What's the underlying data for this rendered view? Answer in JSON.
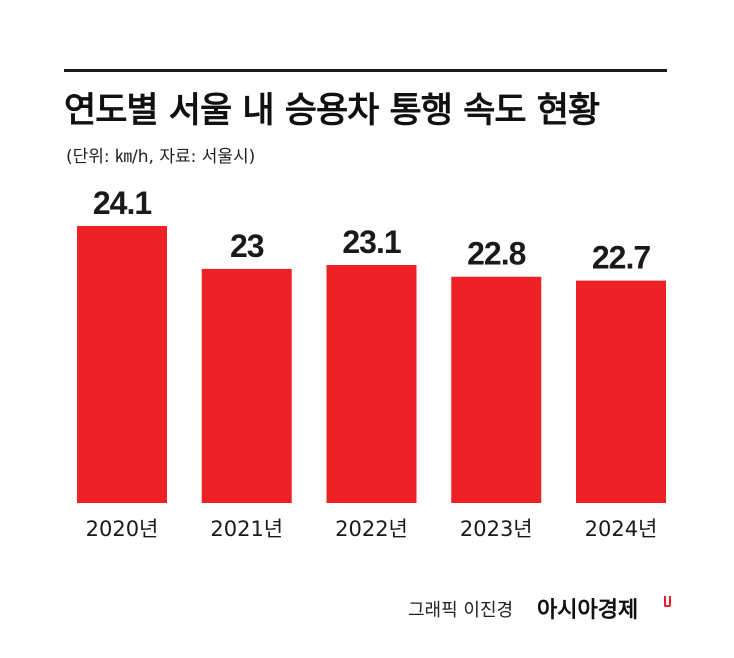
{
  "header": {
    "title": "연도별 서울 내 승용차 통행 속도 현황",
    "subtitle": "(단위: ㎞/h, 자료: 서울시)"
  },
  "footer": {
    "credit": "그래픽 이진경",
    "brand": "아시아경제"
  },
  "colors": {
    "bar": "#ee2127",
    "text": "#1a1a1a"
  },
  "chart_data": {
    "type": "bar",
    "title": "연도별 서울 내 승용차 통행 속도 현황",
    "categories": [
      "2020년",
      "2021년",
      "2022년",
      "2023년",
      "2024년"
    ],
    "values": [
      24.1,
      23,
      23.1,
      22.8,
      22.7
    ],
    "value_labels": [
      "24.1",
      "23",
      "23.1",
      "22.8",
      "22.7"
    ],
    "unit": "㎞/h",
    "ylim": [
      17.0,
      24.1
    ],
    "grid": false,
    "legend": "none"
  }
}
